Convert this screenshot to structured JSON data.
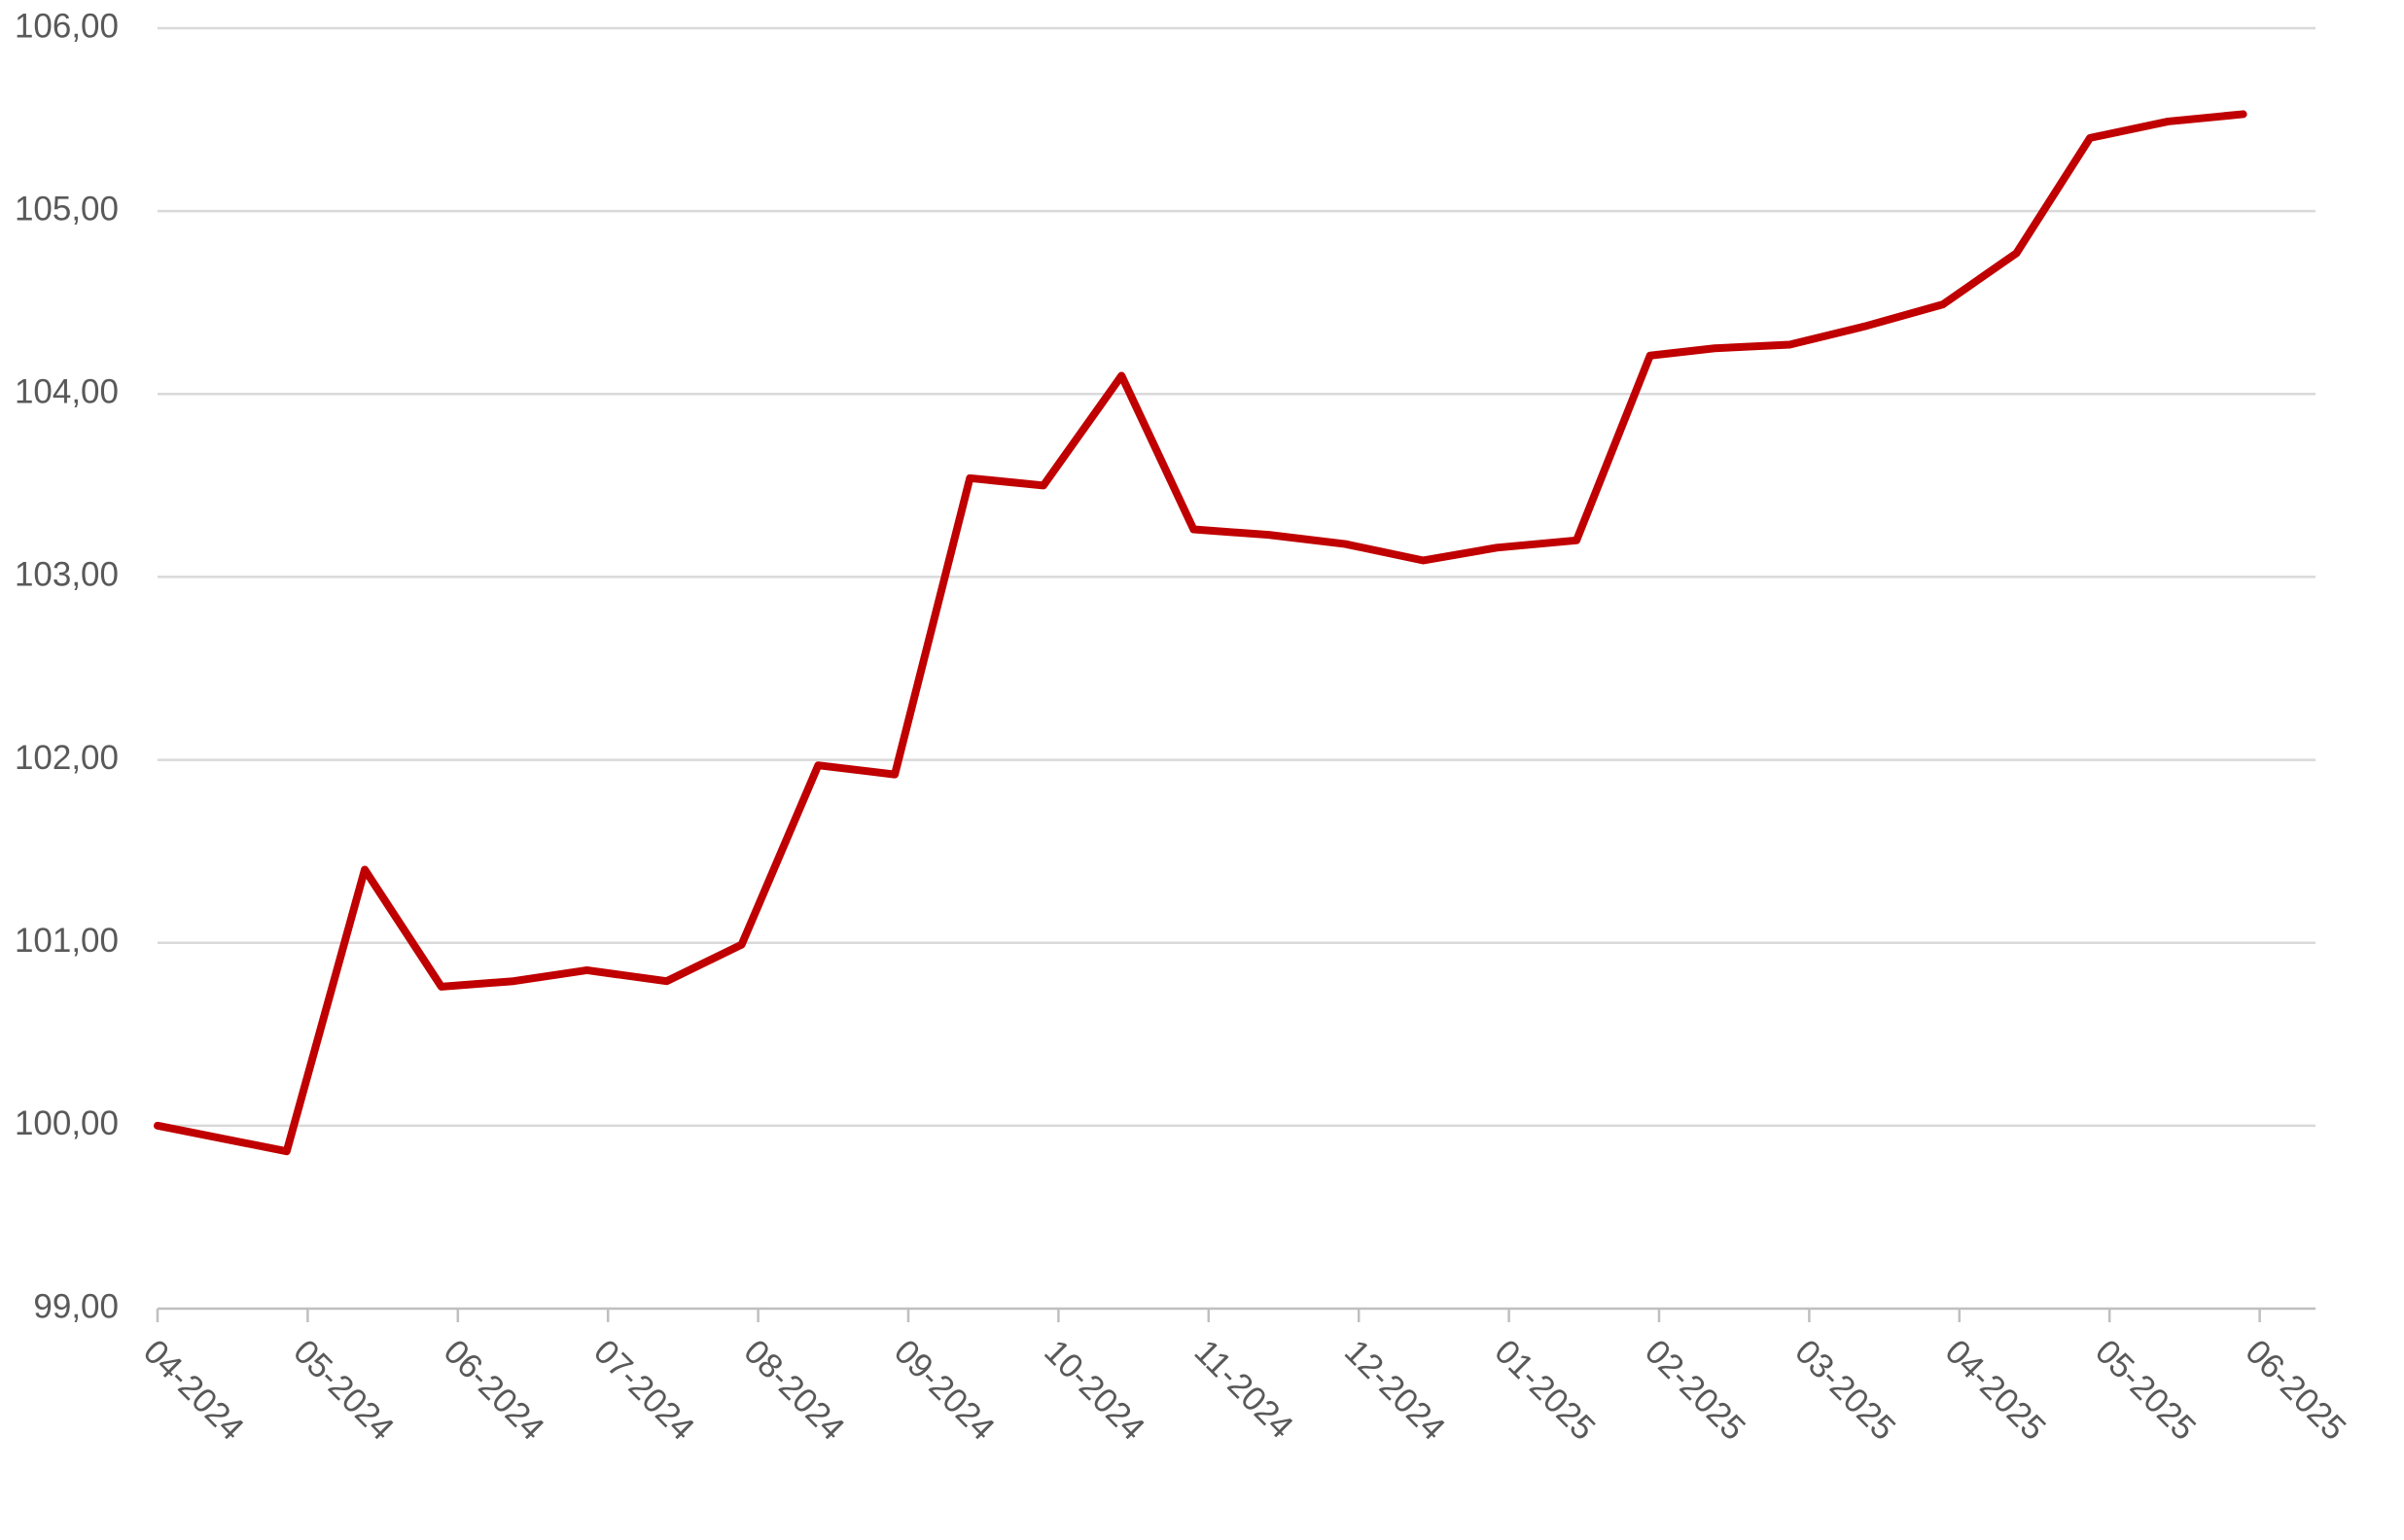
{
  "chart_data": {
    "type": "line",
    "x": [
      0,
      0.86,
      1.38,
      1.89,
      2.37,
      2.86,
      3.39,
      3.89,
      4.4,
      4.91,
      5.41,
      5.9,
      6.42,
      6.9,
      7.4,
      7.91,
      8.43,
      8.92,
      9.45,
      9.94,
      10.37,
      10.87,
      11.37,
      11.89,
      12.38,
      12.87,
      13.39,
      13.89
    ],
    "series": [
      {
        "color": "#c00000",
        "values": [
          100.0,
          99.86,
          101.4,
          100.76,
          100.79,
          100.85,
          100.79,
          100.99,
          101.97,
          101.92,
          103.54,
          103.5,
          104.1,
          103.26,
          103.23,
          103.18,
          103.09,
          103.16,
          103.2,
          104.21,
          104.25,
          104.27,
          104.37,
          104.49,
          104.77,
          105.4,
          105.49,
          105.53
        ]
      }
    ],
    "xlim": [
      0,
      14
    ],
    "xticks": [
      {
        "value": 0,
        "label": "04-2024"
      },
      {
        "value": 1,
        "label": "05-2024"
      },
      {
        "value": 2,
        "label": "06-2024"
      },
      {
        "value": 3,
        "label": "07-2024"
      },
      {
        "value": 4,
        "label": "08-2024"
      },
      {
        "value": 5,
        "label": "09-2024"
      },
      {
        "value": 6,
        "label": "10-2024"
      },
      {
        "value": 7,
        "label": "11-2024"
      },
      {
        "value": 8,
        "label": "12-2024"
      },
      {
        "value": 9,
        "label": "01-2025"
      },
      {
        "value": 10,
        "label": "02-2025"
      },
      {
        "value": 11,
        "label": "03-2025"
      },
      {
        "value": 12,
        "label": "04-2025"
      },
      {
        "value": 13,
        "label": "05-2025"
      },
      {
        "value": 14,
        "label": "06-2025"
      }
    ],
    "ylim": [
      99,
      106
    ],
    "yticks": [
      {
        "value": 99,
        "label": "99,00"
      },
      {
        "value": 100,
        "label": "100,00"
      },
      {
        "value": 101,
        "label": "101,00"
      },
      {
        "value": 102,
        "label": "102,00"
      },
      {
        "value": 103,
        "label": "103,00"
      },
      {
        "value": 104,
        "label": "104,00"
      },
      {
        "value": 105,
        "label": "105,00"
      },
      {
        "value": 106,
        "label": "106,00"
      }
    ],
    "grid": true
  }
}
